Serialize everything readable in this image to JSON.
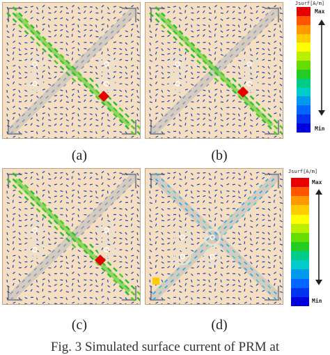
{
  "panels": [
    {
      "label": "(a)"
    },
    {
      "label": "(b)"
    },
    {
      "label": "(c)"
    },
    {
      "label": "(d)"
    }
  ],
  "legends": [
    {
      "header": "Jsurf[A/m]",
      "max": "Max",
      "min": "Min"
    },
    {
      "header": "Jsurf[A/m]",
      "max": "Max",
      "min": "Min"
    }
  ],
  "colorscale": [
    "#e60000",
    "#ff5500",
    "#ff9900",
    "#ffcc00",
    "#ffff00",
    "#bbee00",
    "#66dd00",
    "#22cc22",
    "#00cc88",
    "#00cccc",
    "#0099ee",
    "#0066ff",
    "#0033ee",
    "#0000dd"
  ],
  "figure_caption": "Fig. 3 Simulated surface current of PRM at"
}
